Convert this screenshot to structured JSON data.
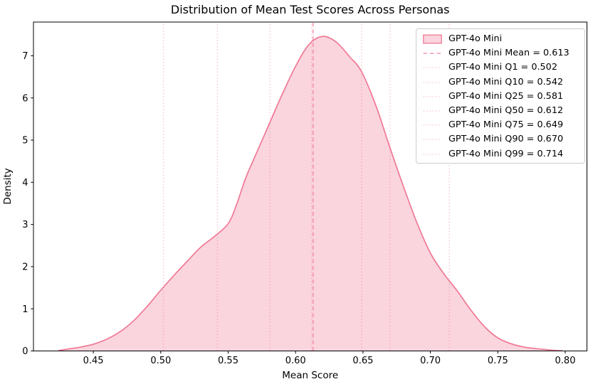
{
  "chart_data": {
    "type": "area",
    "subtype": "kde-density",
    "title": "Distribution of Mean Test Scores Across Personas",
    "xlabel": "Mean Score",
    "ylabel": "Density",
    "xlim": [
      0.4056,
      0.8161
    ],
    "ylim": [
      0,
      7.8
    ],
    "grid": false,
    "legend_position": "upper right",
    "xticks": {
      "values": [
        0.45,
        0.5,
        0.55,
        0.6,
        0.65,
        0.7,
        0.75,
        0.8
      ],
      "labels": [
        "0.45",
        "0.50",
        "0.55",
        "0.60",
        "0.65",
        "0.70",
        "0.75",
        "0.80"
      ]
    },
    "yticks": {
      "values": [
        0,
        1,
        2,
        3,
        4,
        5,
        6,
        7
      ],
      "labels": [
        "0",
        "1",
        "2",
        "3",
        "4",
        "5",
        "6",
        "7"
      ]
    },
    "series": [
      {
        "name": "GPT-4o Mini",
        "color": "#f07894",
        "fill_alpha": 0.31,
        "line_width": 1.7,
        "kde": {
          "x": [
            0.424,
            0.43,
            0.44,
            0.45,
            0.46,
            0.47,
            0.48,
            0.49,
            0.5,
            0.51,
            0.52,
            0.53,
            0.54,
            0.55,
            0.556,
            0.563,
            0.57,
            0.58,
            0.59,
            0.6,
            0.61,
            0.62,
            0.63,
            0.64,
            0.649,
            0.66,
            0.67,
            0.68,
            0.69,
            0.7,
            0.71,
            0.72,
            0.73,
            0.74,
            0.75,
            0.76,
            0.77,
            0.78,
            0.79,
            0.798
          ],
          "density": [
            0.01,
            0.04,
            0.09,
            0.16,
            0.28,
            0.46,
            0.72,
            1.06,
            1.44,
            1.8,
            2.14,
            2.47,
            2.72,
            3.02,
            3.45,
            4.1,
            4.62,
            5.35,
            6.08,
            6.75,
            7.27,
            7.46,
            7.33,
            6.98,
            6.62,
            5.78,
            4.82,
            3.9,
            3.04,
            2.32,
            1.83,
            1.42,
            0.97,
            0.58,
            0.31,
            0.17,
            0.09,
            0.05,
            0.02,
            0.005
          ]
        }
      }
    ],
    "vlines": [
      {
        "id": "mean",
        "x": 0.613,
        "style": "dashed",
        "alpha": 0.63,
        "width": 1.8,
        "label": "GPT-4o Mini Mean = 0.613"
      },
      {
        "id": "q1",
        "x": 0.502,
        "style": "dotted",
        "alpha": 0.35,
        "width": 1.6,
        "label": "GPT-4o Mini Q1 = 0.502"
      },
      {
        "id": "q10",
        "x": 0.542,
        "style": "dotted",
        "alpha": 0.35,
        "width": 1.6,
        "label": "GPT-4o Mini Q10 = 0.542"
      },
      {
        "id": "q25",
        "x": 0.581,
        "style": "dotted",
        "alpha": 0.35,
        "width": 1.6,
        "label": "GPT-4o Mini Q25 = 0.581"
      },
      {
        "id": "q50",
        "x": 0.612,
        "style": "dotted",
        "alpha": 0.35,
        "width": 1.6,
        "label": "GPT-4o Mini Q50 = 0.612"
      },
      {
        "id": "q75",
        "x": 0.649,
        "style": "dotted",
        "alpha": 0.35,
        "width": 1.6,
        "label": "GPT-4o Mini Q75 = 0.649"
      },
      {
        "id": "q90",
        "x": 0.67,
        "style": "dotted",
        "alpha": 0.35,
        "width": 1.6,
        "label": "GPT-4o Mini Q90 = 0.670"
      },
      {
        "id": "q99",
        "x": 0.714,
        "style": "dotted",
        "alpha": 0.35,
        "width": 1.6,
        "label": "GPT-4o Mini Q99 = 0.714"
      }
    ]
  }
}
